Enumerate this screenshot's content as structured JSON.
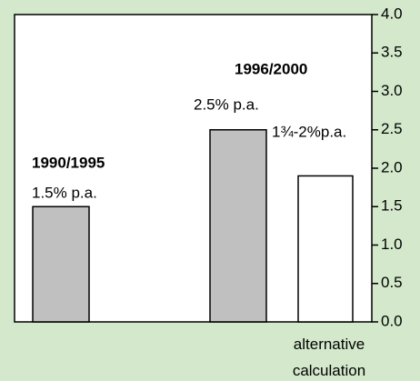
{
  "chart_data": {
    "type": "bar",
    "categories": [
      null,
      null,
      "alternative calculation"
    ],
    "values": [
      1.5,
      2.5,
      1.9
    ],
    "value_labels": [
      "1.5% p.a.",
      "2.5% p.a.",
      "1¾-2%p.a."
    ],
    "group_labels": [
      "1990/1995",
      "1996/2000",
      null
    ],
    "colors": [
      "#c0c0c0",
      "#c0c0c0",
      "#ffffff"
    ],
    "ylim": [
      0,
      4
    ],
    "yticks": [
      {
        "value": 0,
        "label": "0.0"
      },
      0.5,
      {
        "value": 1,
        "label": "1.0"
      },
      1.5,
      {
        "value": 2,
        "label": "2.0"
      },
      2.5,
      {
        "value": 3,
        "label": "3.0"
      },
      3.5,
      {
        "value": 4,
        "label": "4.0"
      }
    ],
    "y_axis_side": "right"
  }
}
